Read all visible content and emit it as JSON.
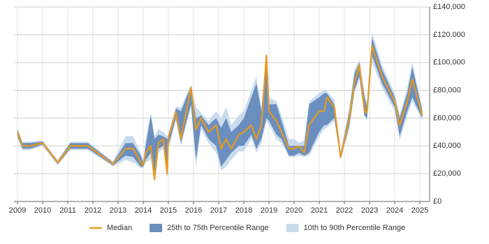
{
  "chart_data": {
    "type": "band-line",
    "x": [
      2009.0,
      2009.2,
      2009.5,
      2010.0,
      2010.6,
      2011.1,
      2011.8,
      2012.8,
      2013.3,
      2013.6,
      2013.9,
      2014.0,
      2014.1,
      2014.3,
      2014.45,
      2014.6,
      2014.8,
      2014.95,
      2015.0,
      2015.3,
      2015.5,
      2015.9,
      2016.1,
      2016.3,
      2016.6,
      2016.9,
      2017.1,
      2017.3,
      2017.5,
      2017.8,
      2018.0,
      2018.3,
      2018.5,
      2018.7,
      2018.9,
      2019.0,
      2019.3,
      2019.5,
      2019.8,
      2020.0,
      2020.2,
      2020.4,
      2020.6,
      2021.0,
      2021.2,
      2021.3,
      2021.6,
      2021.85,
      2022.2,
      2022.4,
      2022.6,
      2022.8,
      2022.9,
      2023.1,
      2023.5,
      2024.0,
      2024.2,
      2024.5,
      2024.7,
      2025.1
    ],
    "series": [
      {
        "name": "Median",
        "color": "#e8991f",
        "values": [
          50000,
          40000,
          40000,
          42000,
          28000,
          40000,
          40000,
          27000,
          38000,
          38000,
          28000,
          26000,
          35000,
          40000,
          16000,
          42000,
          45000,
          20000,
          46000,
          64000,
          45000,
          82000,
          52000,
          60000,
          50000,
          55000,
          38000,
          45000,
          38000,
          48000,
          50000,
          55000,
          45000,
          55000,
          105000,
          65000,
          58000,
          50000,
          38000,
          38000,
          40000,
          35000,
          55000,
          65000,
          65000,
          75000,
          68000,
          32000,
          60000,
          85000,
          98000,
          65000,
          64000,
          112000,
          90000,
          72000,
          55000,
          72000,
          88000,
          62000
        ]
      },
      {
        "name": "25th to 75th Percentile Range",
        "color": "#6a8fbf",
        "low": [
          47000,
          38000,
          38000,
          41000,
          27000,
          38000,
          38000,
          26000,
          33000,
          32000,
          25000,
          25000,
          30000,
          35000,
          15000,
          38000,
          40000,
          18000,
          40000,
          60000,
          42000,
          70000,
          30000,
          55000,
          45000,
          40000,
          25000,
          30000,
          35000,
          40000,
          40000,
          48000,
          38000,
          45000,
          60000,
          58000,
          48000,
          45000,
          33000,
          33000,
          35000,
          33000,
          35000,
          50000,
          55000,
          55000,
          60000,
          31000,
          55000,
          80000,
          90000,
          62000,
          60000,
          105000,
          85000,
          68000,
          47000,
          65000,
          75000,
          60000
        ],
        "high": [
          52000,
          42000,
          42000,
          43000,
          29000,
          42000,
          42000,
          28000,
          42000,
          42000,
          33000,
          28000,
          40000,
          62000,
          45000,
          48000,
          47000,
          45000,
          47000,
          67000,
          65000,
          83000,
          60000,
          62000,
          55000,
          60000,
          53000,
          60000,
          50000,
          55000,
          60000,
          75000,
          85000,
          65000,
          107000,
          70000,
          70000,
          58000,
          40000,
          40000,
          40000,
          40000,
          70000,
          75000,
          78000,
          78000,
          70000,
          34000,
          65000,
          92000,
          100000,
          75000,
          68000,
          118000,
          95000,
          75000,
          60000,
          78000,
          97000,
          65000
        ]
      },
      {
        "name": "10th to 90th Percentile Range",
        "color": "#c9dcee",
        "low": [
          45000,
          37000,
          37000,
          40000,
          26000,
          37000,
          37000,
          25000,
          30000,
          28000,
          24000,
          24000,
          28000,
          30000,
          14000,
          35000,
          38000,
          17000,
          38000,
          58000,
          40000,
          68000,
          25000,
          52000,
          42000,
          35000,
          22000,
          25000,
          30000,
          36000,
          36000,
          45000,
          35000,
          42000,
          58000,
          55000,
          45000,
          42000,
          32000,
          32000,
          33000,
          32000,
          33000,
          47000,
          52000,
          53000,
          58000,
          30000,
          52000,
          78000,
          88000,
          60000,
          58000,
          100000,
          82000,
          65000,
          44000,
          62000,
          72000,
          58000
        ],
        "high": [
          52000,
          43000,
          43000,
          44000,
          30000,
          43000,
          43000,
          29000,
          47000,
          47000,
          35000,
          30000,
          45000,
          64000,
          47000,
          52000,
          50000,
          47000,
          49000,
          68000,
          68000,
          84000,
          68000,
          64000,
          58000,
          65000,
          60000,
          68000,
          55000,
          62000,
          65000,
          80000,
          90000,
          68000,
          108000,
          75000,
          72000,
          62000,
          45000,
          45000,
          42000,
          44000,
          72000,
          78000,
          80000,
          80000,
          73000,
          36000,
          68000,
          95000,
          102000,
          78000,
          72000,
          122000,
          98000,
          78000,
          62000,
          82000,
          100000,
          68000
        ]
      }
    ],
    "xlim": [
      2008.86,
      2025.39
    ],
    "xticks": [
      2009,
      2010,
      2011,
      2012,
      2013,
      2014,
      2015,
      2016,
      2017,
      2018,
      2019,
      2020,
      2021,
      2022,
      2023,
      2024,
      2025
    ],
    "ylim": [
      0,
      140000
    ],
    "yticks": [
      {
        "value": 0,
        "label": "£0"
      },
      {
        "value": 20000,
        "label": "£20,000"
      },
      {
        "value": 40000,
        "label": "£40,000"
      },
      {
        "value": 60000,
        "label": "£60,000"
      },
      {
        "value": 80000,
        "label": "£80,000"
      },
      {
        "value": 100000,
        "label": "£100,000"
      },
      {
        "value": 120000,
        "label": "£120,000"
      },
      {
        "value": 140000,
        "label": "£140,000"
      }
    ],
    "grid": true,
    "legend": "bottom"
  }
}
